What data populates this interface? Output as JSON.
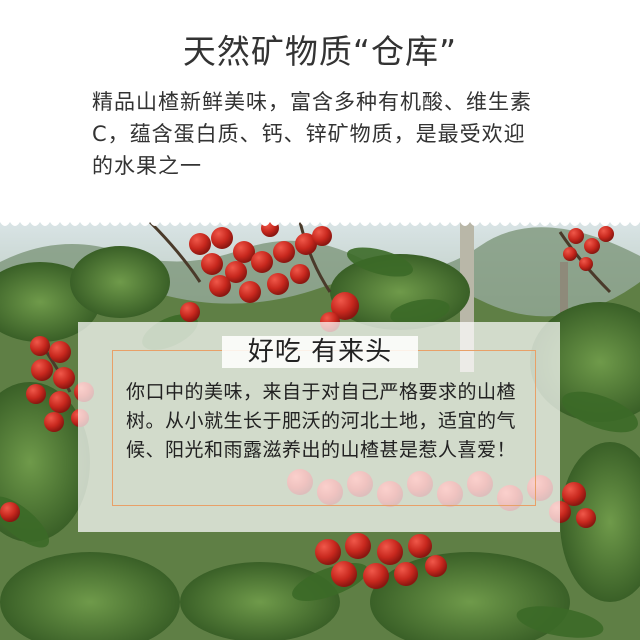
{
  "header": {
    "title": "天然矿物质“仓库”",
    "description": "精品山楂新鲜美味，富含多种有机酸、维生素C，蕴含蛋白质、钙、锌矿物质，是最受欢迎的水果之一"
  },
  "feature_card": {
    "title": "好吃 有来头",
    "body": "你口中的美味，来自于对自己严格要求的山楂树。从小就生长于肥沃的河北土地，适宜的气候、阳光和雨露滋养出的山楂甚是惹人喜爱！"
  },
  "colors": {
    "text": "#333333",
    "accent_border": "#e8a068",
    "berry_red": "#c8281e",
    "leaf_green": "#3f6b2a"
  }
}
